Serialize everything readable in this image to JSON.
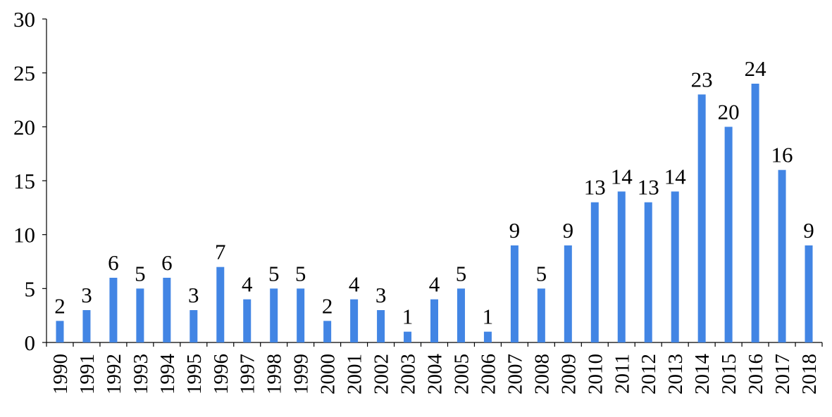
{
  "chart_data": {
    "type": "bar",
    "categories": [
      "1990",
      "1991",
      "1992",
      "1993",
      "1994",
      "1995",
      "1996",
      "1997",
      "1998",
      "1999",
      "2000",
      "2001",
      "2002",
      "2003",
      "2004",
      "2005",
      "2006",
      "2007",
      "2008",
      "2009",
      "2010",
      "2011",
      "2012",
      "2013",
      "2014",
      "2015",
      "2016",
      "2017",
      "2018"
    ],
    "values": [
      2,
      3,
      6,
      5,
      6,
      3,
      7,
      4,
      5,
      5,
      2,
      4,
      3,
      1,
      4,
      5,
      1,
      9,
      5,
      9,
      13,
      14,
      13,
      14,
      23,
      20,
      24,
      16,
      9
    ],
    "data_labels": [
      "2",
      "3",
      "6",
      "5",
      "6",
      "3",
      "7",
      "4",
      "5",
      "5",
      "2",
      "4",
      "3",
      "1",
      "4",
      "5",
      "1",
      "9",
      "5",
      "9",
      "13",
      "14",
      "13",
      "14",
      "23",
      "20",
      "24",
      "16",
      "9"
    ],
    "title": "",
    "xlabel": "",
    "ylabel": "",
    "ylim": [
      0,
      30
    ],
    "yticks": [
      0,
      5,
      10,
      15,
      20,
      25,
      30
    ],
    "ytick_labels": [
      "0",
      "5",
      "10",
      "15",
      "20",
      "25",
      "30"
    ],
    "grid": false,
    "legend": "none",
    "bar_color": "#4285E4"
  }
}
